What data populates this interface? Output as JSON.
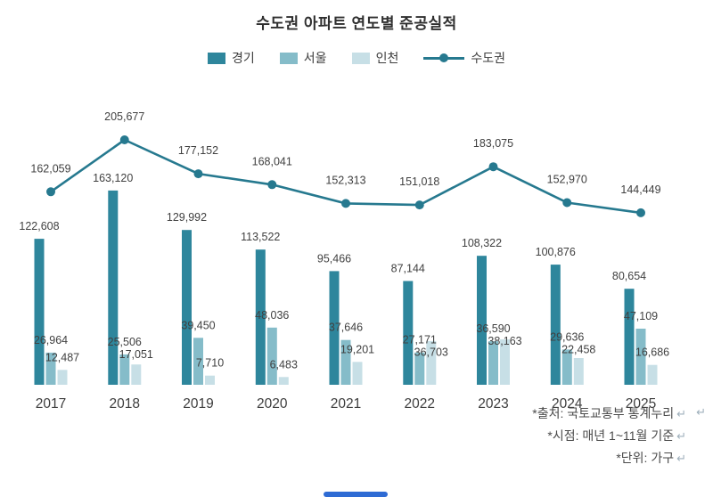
{
  "chart_data": {
    "type": "bar",
    "subtype": "grouped-bars-with-line-overlay",
    "title": "수도권 아파트 연도별 준공실적",
    "categories": [
      "2017",
      "2018",
      "2019",
      "2020",
      "2021",
      "2022",
      "2023",
      "2024",
      "2025"
    ],
    "series": [
      {
        "key": "gyeonggi",
        "name": "경기",
        "type": "bar",
        "color": "#2e869c",
        "values": [
          122608,
          163120,
          129992,
          113522,
          95466,
          87144,
          108322,
          100876,
          80654
        ]
      },
      {
        "key": "seoul",
        "name": "서울",
        "type": "bar",
        "color": "#85bcc9",
        "values": [
          26964,
          25506,
          39450,
          48036,
          37646,
          27171,
          36590,
          29636,
          47109
        ]
      },
      {
        "key": "incheon",
        "name": "인천",
        "type": "bar",
        "color": "#c7dfe6",
        "values": [
          12487,
          17051,
          7710,
          6483,
          19201,
          36703,
          38163,
          22458,
          16686
        ]
      },
      {
        "key": "sudogwon",
        "name": "수도권",
        "type": "line",
        "color": "#26798f",
        "values": [
          162059,
          205677,
          177152,
          168041,
          152313,
          151018,
          183075,
          152970,
          144449
        ]
      }
    ],
    "value_labels": true,
    "xlabel": "",
    "ylabel": "",
    "ylim": [
      0,
      220000
    ],
    "gridlines": false,
    "y_axis_visible": false,
    "legend_position": "top",
    "unit": "가구"
  },
  "footnotes": {
    "lines": [
      "*출처: 국토교통부 통계누리",
      "*시점: 매년 1~11월 기준",
      "*단위: 가구"
    ],
    "return_mark": "↵"
  }
}
